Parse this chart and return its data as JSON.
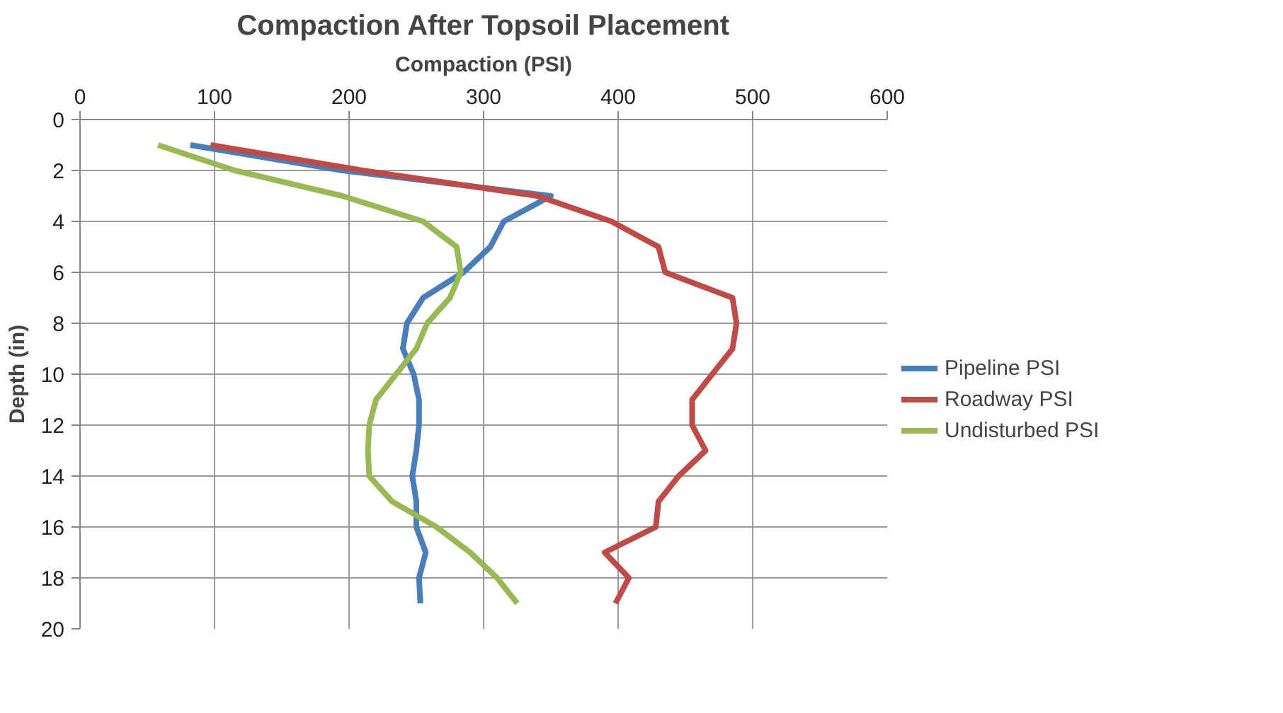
{
  "chart_data": {
    "type": "line",
    "title": "Compaction After Topsoil Placement",
    "xlabel": "Compaction (PSI)",
    "ylabel": "Depth (in)",
    "xlim": [
      0,
      600
    ],
    "xticks": [
      0,
      100,
      200,
      300,
      400,
      500,
      600
    ],
    "ylim": [
      20,
      0
    ],
    "yticks": [
      0,
      2,
      4,
      6,
      8,
      10,
      12,
      14,
      16,
      18,
      20
    ],
    "grid": true,
    "legend": "right",
    "marker": "none",
    "line_style": "solid",
    "series": [
      {
        "name": "Pipeline PSI",
        "color": "#4a7ebb",
        "x": [
          82,
          195,
          350,
          315,
          305,
          285,
          255,
          243,
          240,
          248,
          252,
          252,
          250,
          247,
          250,
          250,
          257,
          252,
          253
        ],
        "values": [
          1,
          2,
          3,
          4,
          5,
          6,
          7,
          8,
          9,
          10,
          11,
          12,
          13,
          14,
          15,
          16,
          17,
          18,
          19
        ]
      },
      {
        "name": "Roadway PSI",
        "color": "#be4b48",
        "x": [
          97,
          210,
          340,
          395,
          430,
          435,
          485,
          488,
          485,
          470,
          455,
          455,
          465,
          445,
          430,
          428,
          390,
          408,
          398
        ],
        "values": [
          1,
          2,
          3,
          4,
          5,
          6,
          7,
          8,
          9,
          10,
          11,
          12,
          13,
          14,
          15,
          16,
          17,
          18,
          19
        ]
      },
      {
        "name": "Undisturbed PSI",
        "color": "#98b954",
        "x": [
          58,
          115,
          195,
          255,
          280,
          283,
          275,
          258,
          250,
          235,
          220,
          215,
          214,
          215,
          232,
          265,
          290,
          310,
          325
        ],
        "values": [
          1,
          2,
          3,
          4,
          5,
          6,
          7,
          8,
          9,
          10,
          11,
          12,
          13,
          14,
          15,
          16,
          17,
          18,
          19
        ]
      }
    ]
  }
}
